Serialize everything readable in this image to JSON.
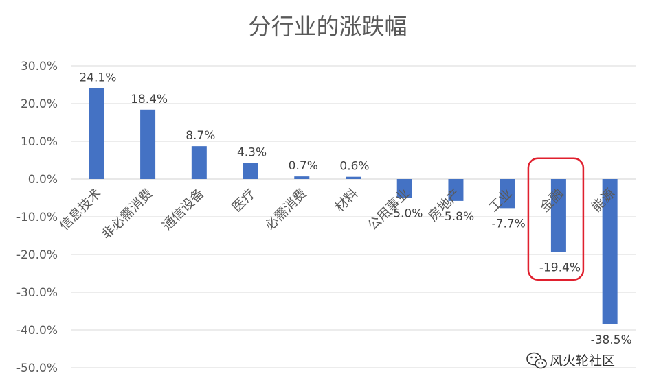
{
  "chart_data": {
    "type": "bar",
    "title": "分行业的涨跌幅",
    "categories": [
      "信息技术",
      "非必需消费",
      "通信设备",
      "医疗",
      "必需消费",
      "材料",
      "公用事业",
      "房地产",
      "工业",
      "金融",
      "能源"
    ],
    "values": [
      24.1,
      18.4,
      8.7,
      4.3,
      0.7,
      0.6,
      -5.0,
      -5.8,
      -7.7,
      -19.4,
      -38.5
    ],
    "value_labels": [
      "24.1%",
      "18.4%",
      "8.7%",
      "4.3%",
      "0.7%",
      "0.6%",
      "-5.0%",
      "-5.8%",
      "-7.7%",
      "-19.4%",
      "-38.5%"
    ],
    "yticks": [
      30,
      20,
      10,
      0,
      -10,
      -20,
      -30,
      -40,
      -50
    ],
    "ytick_labels": [
      "30.0%",
      "20.0%",
      "10.0%",
      "0.0%",
      "-10.0%",
      "-20.0%",
      "-30.0%",
      "-40.0%",
      "-50.0%"
    ],
    "ylim": [
      -50,
      30
    ],
    "grid": true,
    "bar_color": "#4472c4",
    "highlight": {
      "category": "金融",
      "color": "#e0202e"
    }
  },
  "watermark": {
    "icon": "wechat-icon",
    "text": "风火轮社区"
  }
}
